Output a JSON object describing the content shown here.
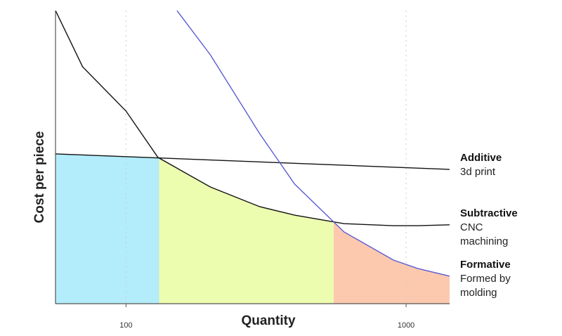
{
  "chart_data": {
    "type": "line",
    "xlabel": "Quantity",
    "ylabel": "Cost per piece",
    "xscale": "log",
    "xlim": [
      56,
      1430
    ],
    "xticks": [
      100,
      1000
    ],
    "ylim": [
      0,
      100
    ],
    "grid": true,
    "series": [
      {
        "name": "Additive",
        "description": "3d print",
        "color": "#111111",
        "fill": "#b3ecfb",
        "x": [
          56,
          1430
        ],
        "values": [
          51.1,
          45.8
        ]
      },
      {
        "name": "Subtractive",
        "description": "CNC machining",
        "color": "#111111",
        "fill": "#edfdb0",
        "x": [
          56,
          70,
          100,
          130,
          200,
          300,
          400,
          600,
          900,
          1100,
          1430
        ],
        "values": [
          100,
          80.8,
          65.7,
          49.9,
          39.8,
          33.1,
          30.2,
          27.3,
          26.6,
          26.6,
          26.9
        ]
      },
      {
        "name": "Formative",
        "description": "Formed by molding",
        "color": "#5b5bd6",
        "fill": "#fcc9ae",
        "x": [
          152,
          200,
          300,
          400,
          600,
          900,
          1100,
          1430
        ],
        "values": [
          100,
          84.9,
          58.0,
          40.8,
          24.5,
          14.9,
          12.0,
          9.4
        ]
      }
    ]
  }
}
